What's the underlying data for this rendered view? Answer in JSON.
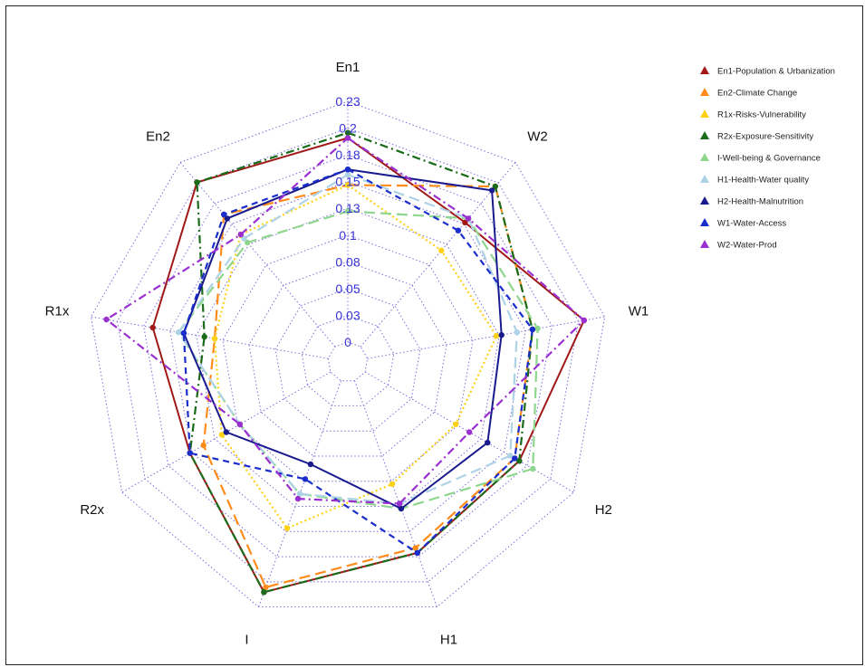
{
  "chart_data": {
    "type": "radar",
    "axes": [
      "En1",
      "W2",
      "W1",
      "H2",
      "H1",
      "I",
      "R2x",
      "R1x",
      "En2"
    ],
    "ticks": [
      "0",
      "0.03",
      "0.05",
      "0.08",
      "0.1",
      "0.13",
      "0.15",
      "0.18",
      "0.2",
      "0.23"
    ],
    "range": [
      0,
      0.23
    ],
    "grid": true,
    "legend_position": "top-right",
    "series": [
      {
        "name": "En1-Population & Urbanization",
        "color": "#a01818",
        "dash": "solid",
        "values": [
          0.195,
          0.155,
          0.21,
          0.17,
          0.175,
          0.215,
          0.155,
          0.17,
          0.205
        ]
      },
      {
        "name": "En2-Climate Change",
        "color": "#ff8c1a",
        "dash": "long",
        "values": [
          0.15,
          0.2,
          0.16,
          0.165,
          0.17,
          0.21,
          0.14,
          0.11,
          0.165
        ]
      },
      {
        "name": "R1x-Risks-Vulnerability",
        "color": "#ffd21a",
        "dash": "dot",
        "values": [
          0.15,
          0.12,
          0.125,
          0.1,
          0.105,
          0.15,
          0.12,
          0.11,
          0.14
        ]
      },
      {
        "name": "R2x-Exposure-Sensitivity",
        "color": "#1a6b1a",
        "dash": "dashdot",
        "values": [
          0.2,
          0.2,
          0.16,
          0.17,
          0.175,
          0.215,
          0.155,
          0.12,
          0.205
        ]
      },
      {
        "name": "I-Well-being & Governance",
        "color": "#8fd68f",
        "dash": "long",
        "values": [
          0.125,
          0.16,
          0.165,
          0.185,
          0.13,
          0.115,
          0.1,
          0.145,
          0.13
        ]
      },
      {
        "name": "H1-Health-Water quality",
        "color": "#aed2e6",
        "dash": "long",
        "values": [
          0.16,
          0.16,
          0.145,
          0.16,
          0.125,
          0.115,
          0.1,
          0.145,
          0.135
        ]
      },
      {
        "name": "H2-Health-Malnutrition",
        "color": "#1a1a8f",
        "dash": "solid",
        "values": [
          0.165,
          0.195,
          0.13,
          0.135,
          0.13,
          0.085,
          0.115,
          0.14,
          0.16
        ]
      },
      {
        "name": "W1-Water-Access",
        "color": "#1a2ecc",
        "dash": "dash",
        "values": [
          0.165,
          0.145,
          0.16,
          0.165,
          0.175,
          0.1,
          0.155,
          0.14,
          0.165
        ]
      },
      {
        "name": "W2-Water-Prod",
        "color": "#9b30d0",
        "dash": "dashdot",
        "values": [
          0.195,
          0.16,
          0.21,
          0.115,
          0.125,
          0.12,
          0.1,
          0.215,
          0.14
        ]
      }
    ]
  }
}
